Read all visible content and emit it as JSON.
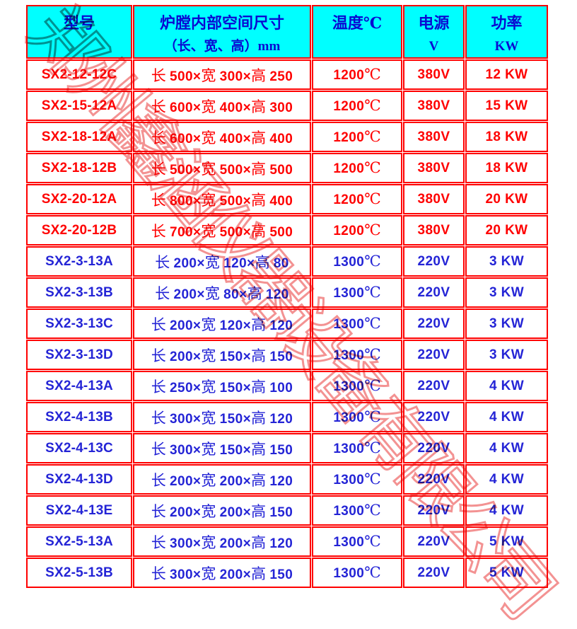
{
  "page": {
    "background": "#ffffff"
  },
  "colors": {
    "border": "#ff0000",
    "header_bg": "#00ffff",
    "header_text": "#0a0ad2",
    "group_red": "#ff0000",
    "group_blue": "#2424d6",
    "watermark_pink": "#f07a7a"
  },
  "watermark": {
    "text": "郑州鑫涵仪器设备有限公司"
  },
  "table": {
    "columns": [
      {
        "label": "型号",
        "sub": ""
      },
      {
        "label": "炉膛内部空间尺寸",
        "sub": "（长、宽、高）mm"
      },
      {
        "label": "温度℃",
        "sub": ""
      },
      {
        "label": "电源",
        "sub": "V"
      },
      {
        "label": "功率",
        "sub": "KW"
      }
    ],
    "size_labels": {
      "length": "长",
      "width": "宽",
      "height": "高",
      "times": "×"
    },
    "temp_unit": "℃",
    "rows": [
      {
        "model": "SX2-12-12C",
        "len": "500",
        "wid": "300",
        "hgt": "250",
        "temp": "1200",
        "volt": "380V",
        "power": "12 KW",
        "tone": "red"
      },
      {
        "model": "SX2-15-12A",
        "len": "600",
        "wid": "400",
        "hgt": "300",
        "temp": "1200",
        "volt": "380V",
        "power": "15 KW",
        "tone": "red"
      },
      {
        "model": "SX2-18-12A",
        "len": "600",
        "wid": "400",
        "hgt": "400",
        "temp": "1200",
        "volt": "380V",
        "power": "18 KW",
        "tone": "red"
      },
      {
        "model": "SX2-18-12B",
        "len": "500",
        "wid": "500",
        "hgt": "500",
        "temp": "1200",
        "volt": "380V",
        "power": "18 KW",
        "tone": "red"
      },
      {
        "model": "SX2-20-12A",
        "len": "800",
        "wid": "500",
        "hgt": "400",
        "temp": "1200",
        "volt": "380V",
        "power": "20 KW",
        "tone": "red"
      },
      {
        "model": "SX2-20-12B",
        "len": "700",
        "wid": "500",
        "hgt": "500",
        "temp": "1200",
        "volt": "380V",
        "power": "20 KW",
        "tone": "red"
      },
      {
        "model": "SX2-3-13A",
        "len": "200",
        "wid": "120",
        "hgt": "80",
        "temp": "1300",
        "volt": "220V",
        "power": "3 KW",
        "tone": "blue"
      },
      {
        "model": "SX2-3-13B",
        "len": "200",
        "wid": "80",
        "hgt": "120",
        "temp": "1300",
        "volt": "220V",
        "power": "3 KW",
        "tone": "blue"
      },
      {
        "model": "SX2-3-13C",
        "len": "200",
        "wid": "120",
        "hgt": "120",
        "temp": "1300",
        "volt": "220V",
        "power": "3 KW",
        "tone": "blue"
      },
      {
        "model": "SX2-3-13D",
        "len": "200",
        "wid": "150",
        "hgt": "150",
        "temp": "1300",
        "volt": "220V",
        "power": "3 KW",
        "tone": "blue"
      },
      {
        "model": "SX2-4-13A",
        "len": "250",
        "wid": "150",
        "hgt": "100",
        "temp": "1300",
        "volt": "220V",
        "power": "4 KW",
        "tone": "blue"
      },
      {
        "model": "SX2-4-13B",
        "len": "300",
        "wid": "150",
        "hgt": "120",
        "temp": "1300",
        "volt": "220V",
        "power": "4 KW",
        "tone": "blue"
      },
      {
        "model": "SX2-4-13C",
        "len": "300",
        "wid": "150",
        "hgt": "150",
        "temp": "1300",
        "volt": "220V",
        "power": "4 KW",
        "tone": "blue"
      },
      {
        "model": "SX2-4-13D",
        "len": "200",
        "wid": "200",
        "hgt": "120",
        "temp": "1300",
        "volt": "220V",
        "power": "4 KW",
        "tone": "blue"
      },
      {
        "model": "SX2-4-13E",
        "len": "200",
        "wid": "200",
        "hgt": "150",
        "temp": "1300",
        "volt": "220V",
        "power": "4 KW",
        "tone": "blue"
      },
      {
        "model": "SX2-5-13A",
        "len": "300",
        "wid": "200",
        "hgt": "120",
        "temp": "1300",
        "volt": "220V",
        "power": "5 KW",
        "tone": "blue"
      },
      {
        "model": "SX2-5-13B",
        "len": "300",
        "wid": "200",
        "hgt": "150",
        "temp": "1300",
        "volt": "220V",
        "power": "5 KW",
        "tone": "blue"
      }
    ]
  }
}
